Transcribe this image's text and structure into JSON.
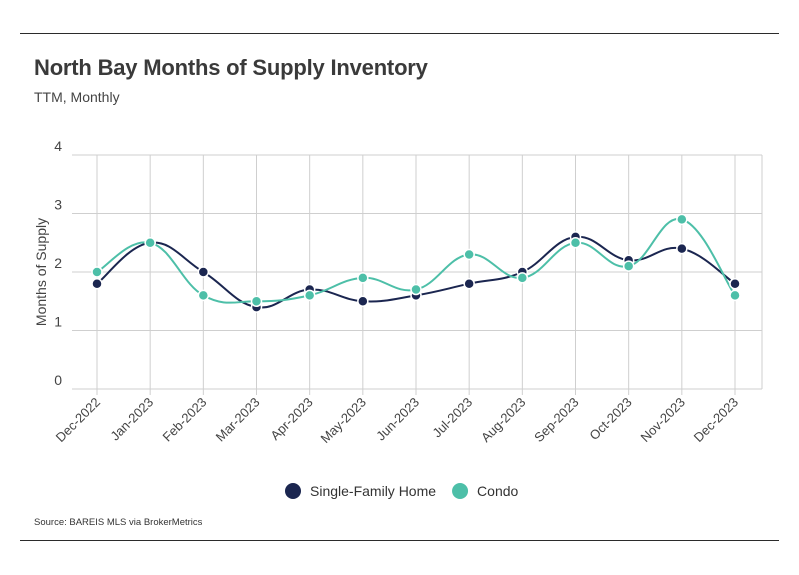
{
  "header": {
    "title": "North Bay Months of Supply Inventory",
    "subtitle": "TTM, Monthly"
  },
  "footer": {
    "source": "Source:  BAREIS MLS via BrokerMetrics"
  },
  "chart_data": {
    "type": "line",
    "title": "North Bay Months of Supply Inventory",
    "subtitle": "TTM, Monthly",
    "xlabel": "",
    "ylabel": "Months of Supply",
    "ylim": [
      0,
      4
    ],
    "yticks": [
      0,
      1,
      2,
      3,
      4
    ],
    "grid": "vertical and horizontal",
    "legend_position": "bottom-center",
    "categories": [
      "Dec-2022",
      "Jan-2023",
      "Feb-2023",
      "Mar-2023",
      "Apr-2023",
      "May-2023",
      "Jun-2023",
      "Jul-2023",
      "Aug-2023",
      "Sep-2023",
      "Oct-2023",
      "Nov-2023",
      "Dec-2023"
    ],
    "series": [
      {
        "name": "Single-Family Home",
        "color": "#1b2650",
        "values": [
          1.8,
          2.5,
          2.0,
          1.4,
          1.7,
          1.5,
          1.6,
          1.8,
          2.0,
          2.6,
          2.2,
          2.4,
          1.8
        ]
      },
      {
        "name": "Condo",
        "color": "#4dbfa8",
        "values": [
          2.0,
          2.5,
          1.6,
          1.5,
          1.6,
          1.9,
          1.7,
          2.3,
          1.9,
          2.5,
          2.1,
          2.9,
          1.6
        ]
      }
    ]
  }
}
